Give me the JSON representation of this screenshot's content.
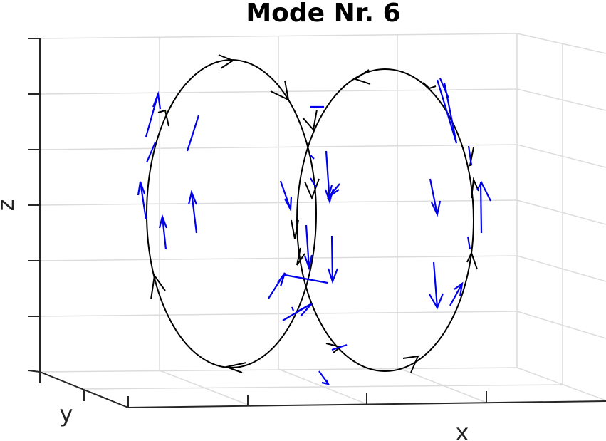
{
  "chart_data": {
    "type": "quiver3d",
    "title": "Mode Nr. 6",
    "xlabel": "x",
    "ylabel": "y",
    "zlabel": "z",
    "grid": true,
    "series": [
      {
        "name": "",
        "kind": "field-lines",
        "color": "#000000"
      },
      {
        "name": "",
        "kind": "vector-field",
        "color": "#0000ee"
      }
    ]
  }
}
